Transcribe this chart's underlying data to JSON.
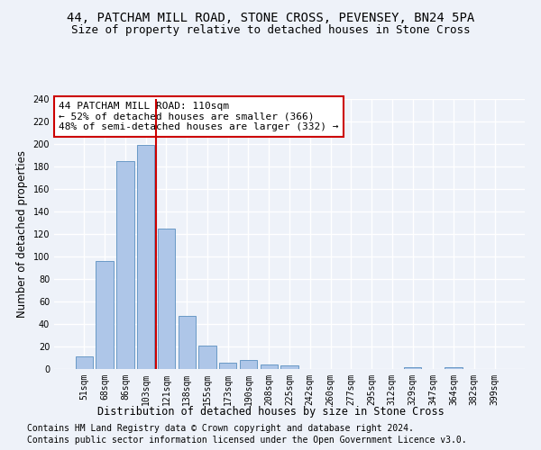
{
  "title1": "44, PATCHAM MILL ROAD, STONE CROSS, PEVENSEY, BN24 5PA",
  "title2": "Size of property relative to detached houses in Stone Cross",
  "xlabel": "Distribution of detached houses by size in Stone Cross",
  "ylabel": "Number of detached properties",
  "footnote1": "Contains HM Land Registry data © Crown copyright and database right 2024.",
  "footnote2": "Contains public sector information licensed under the Open Government Licence v3.0.",
  "annotation_line1": "44 PATCHAM MILL ROAD: 110sqm",
  "annotation_line2": "← 52% of detached houses are smaller (366)",
  "annotation_line3": "48% of semi-detached houses are larger (332) →",
  "bar_labels": [
    "51sqm",
    "68sqm",
    "86sqm",
    "103sqm",
    "121sqm",
    "138sqm",
    "155sqm",
    "173sqm",
    "190sqm",
    "208sqm",
    "225sqm",
    "242sqm",
    "260sqm",
    "277sqm",
    "295sqm",
    "312sqm",
    "329sqm",
    "347sqm",
    "364sqm",
    "382sqm",
    "399sqm"
  ],
  "bar_values": [
    11,
    96,
    185,
    199,
    125,
    47,
    21,
    6,
    8,
    4,
    3,
    0,
    0,
    0,
    0,
    0,
    2,
    0,
    2,
    0,
    0
  ],
  "bar_color": "#aec6e8",
  "bar_edge_color": "#5a8fc0",
  "vline_x": 3.5,
  "vline_color": "#cc0000",
  "ylim": [
    0,
    240
  ],
  "yticks": [
    0,
    20,
    40,
    60,
    80,
    100,
    120,
    140,
    160,
    180,
    200,
    220,
    240
  ],
  "bg_color": "#eef2f9",
  "grid_color": "#ffffff",
  "annotation_box_color": "#ffffff",
  "annotation_border_color": "#cc0000",
  "title1_fontsize": 10,
  "title2_fontsize": 9,
  "xlabel_fontsize": 8.5,
  "ylabel_fontsize": 8.5,
  "tick_fontsize": 7,
  "annotation_fontsize": 8,
  "footnote_fontsize": 7
}
